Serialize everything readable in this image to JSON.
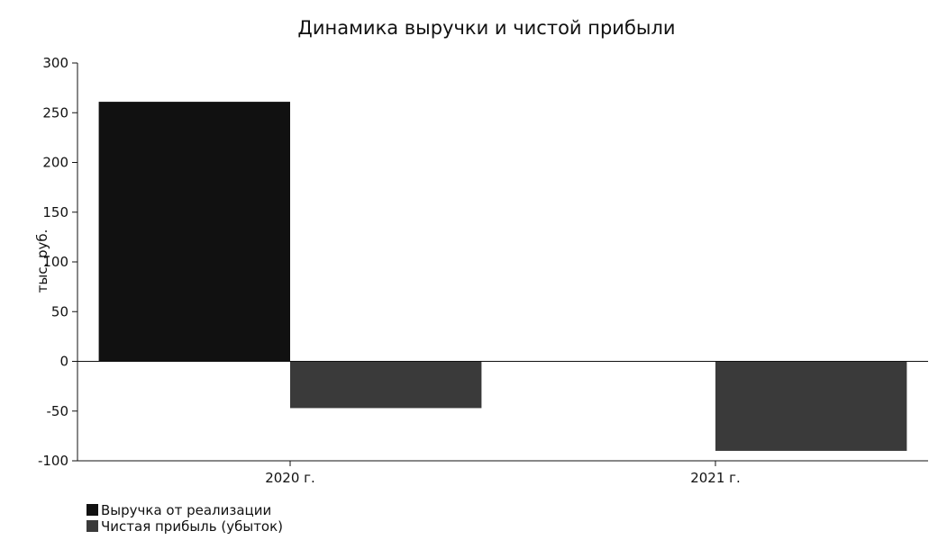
{
  "chart_data": {
    "type": "bar",
    "title": "Динамика выручки и чистой прибыли",
    "xlabel": "",
    "ylabel": "тыс. руб.",
    "categories": [
      "2020 г.",
      "2021 г."
    ],
    "series": [
      {
        "name": "Выручка от реализации",
        "values": [
          261,
          0
        ],
        "color": "#111111"
      },
      {
        "name": "Чистая прибыль (убыток)",
        "values": [
          -47,
          -90
        ],
        "color": "#3a3a3a"
      }
    ],
    "ylim": [
      -100,
      300
    ],
    "yticks": [
      -100,
      -50,
      0,
      50,
      100,
      150,
      200,
      250,
      300
    ],
    "grid": false,
    "legend": "bottom-left"
  }
}
